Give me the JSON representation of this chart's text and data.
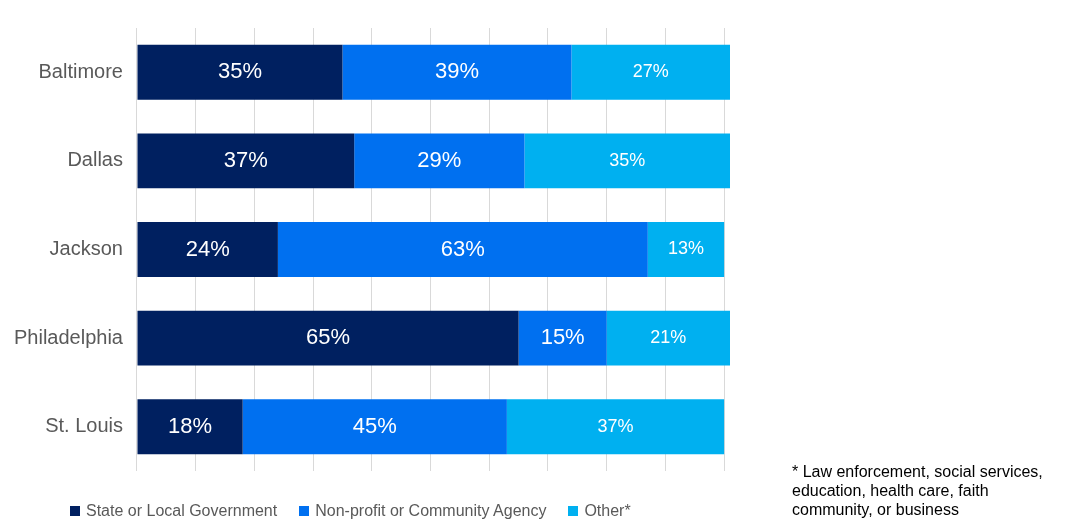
{
  "chart_data": {
    "type": "bar",
    "orientation": "horizontal",
    "stacked": true,
    "categories": [
      "Baltimore",
      "Dallas",
      "Jackson",
      "Philadelphia",
      "St. Louis"
    ],
    "series": [
      {
        "name": "State or Local Government",
        "color": "#002060",
        "values": [
          35,
          37,
          24,
          65,
          18
        ],
        "value_labels": [
          "35%",
          "37%",
          "24%",
          "65%",
          "18%"
        ]
      },
      {
        "name": "Non-profit or Community Agency",
        "color": "#0070f0",
        "values": [
          39,
          29,
          63,
          15,
          45
        ],
        "value_labels": [
          "39%",
          "29%",
          "63%",
          "15%",
          "45%"
        ]
      },
      {
        "name": "Other*",
        "color": "#00b0f0",
        "values": [
          27,
          35,
          13,
          21,
          37
        ],
        "value_labels": [
          "27%",
          "35%",
          "13%",
          "21%",
          "37%"
        ]
      }
    ],
    "xlim": [
      0,
      101
    ],
    "xticks": [
      {
        "value": 0,
        "label": null
      },
      {
        "value": 10,
        "label": null
      },
      {
        "value": 20,
        "label": null
      },
      {
        "value": 30,
        "label": null
      },
      {
        "value": 40,
        "label": null
      },
      {
        "value": 50,
        "label": null
      },
      {
        "value": 60,
        "label": null
      },
      {
        "value": 70,
        "label": null
      },
      {
        "value": 80,
        "label": null
      },
      {
        "value": 90,
        "label": null
      },
      {
        "value": 100,
        "label": null
      }
    ],
    "tick_labels": "y",
    "grid": "x",
    "legend": "bottom",
    "annotations": [
      "* Law enforcement, social services, education, health care, faith community, or business"
    ]
  }
}
